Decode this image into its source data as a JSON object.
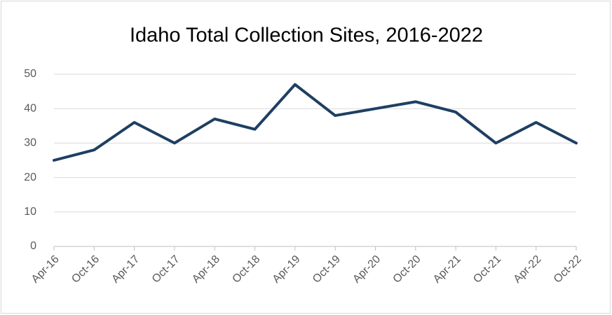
{
  "chart_data": {
    "type": "line",
    "title": "Idaho Total Collection Sites, 2016-2022",
    "categories": [
      "Apr-16",
      "Oct-16",
      "Apr-17",
      "Oct-17",
      "Apr-18",
      "Oct-18",
      "Apr-19",
      "Oct-19",
      "Apr-20",
      "Oct-20",
      "Apr-21",
      "Oct-21",
      "Apr-22",
      "Oct-22"
    ],
    "values": [
      25,
      28,
      36,
      30,
      37,
      34,
      47,
      38,
      40,
      42,
      39,
      30,
      36,
      30
    ],
    "color": "#1f3f63",
    "ylim": [
      0,
      50
    ],
    "yticks": [
      0,
      10,
      20,
      30,
      40,
      50
    ],
    "grid": true
  }
}
